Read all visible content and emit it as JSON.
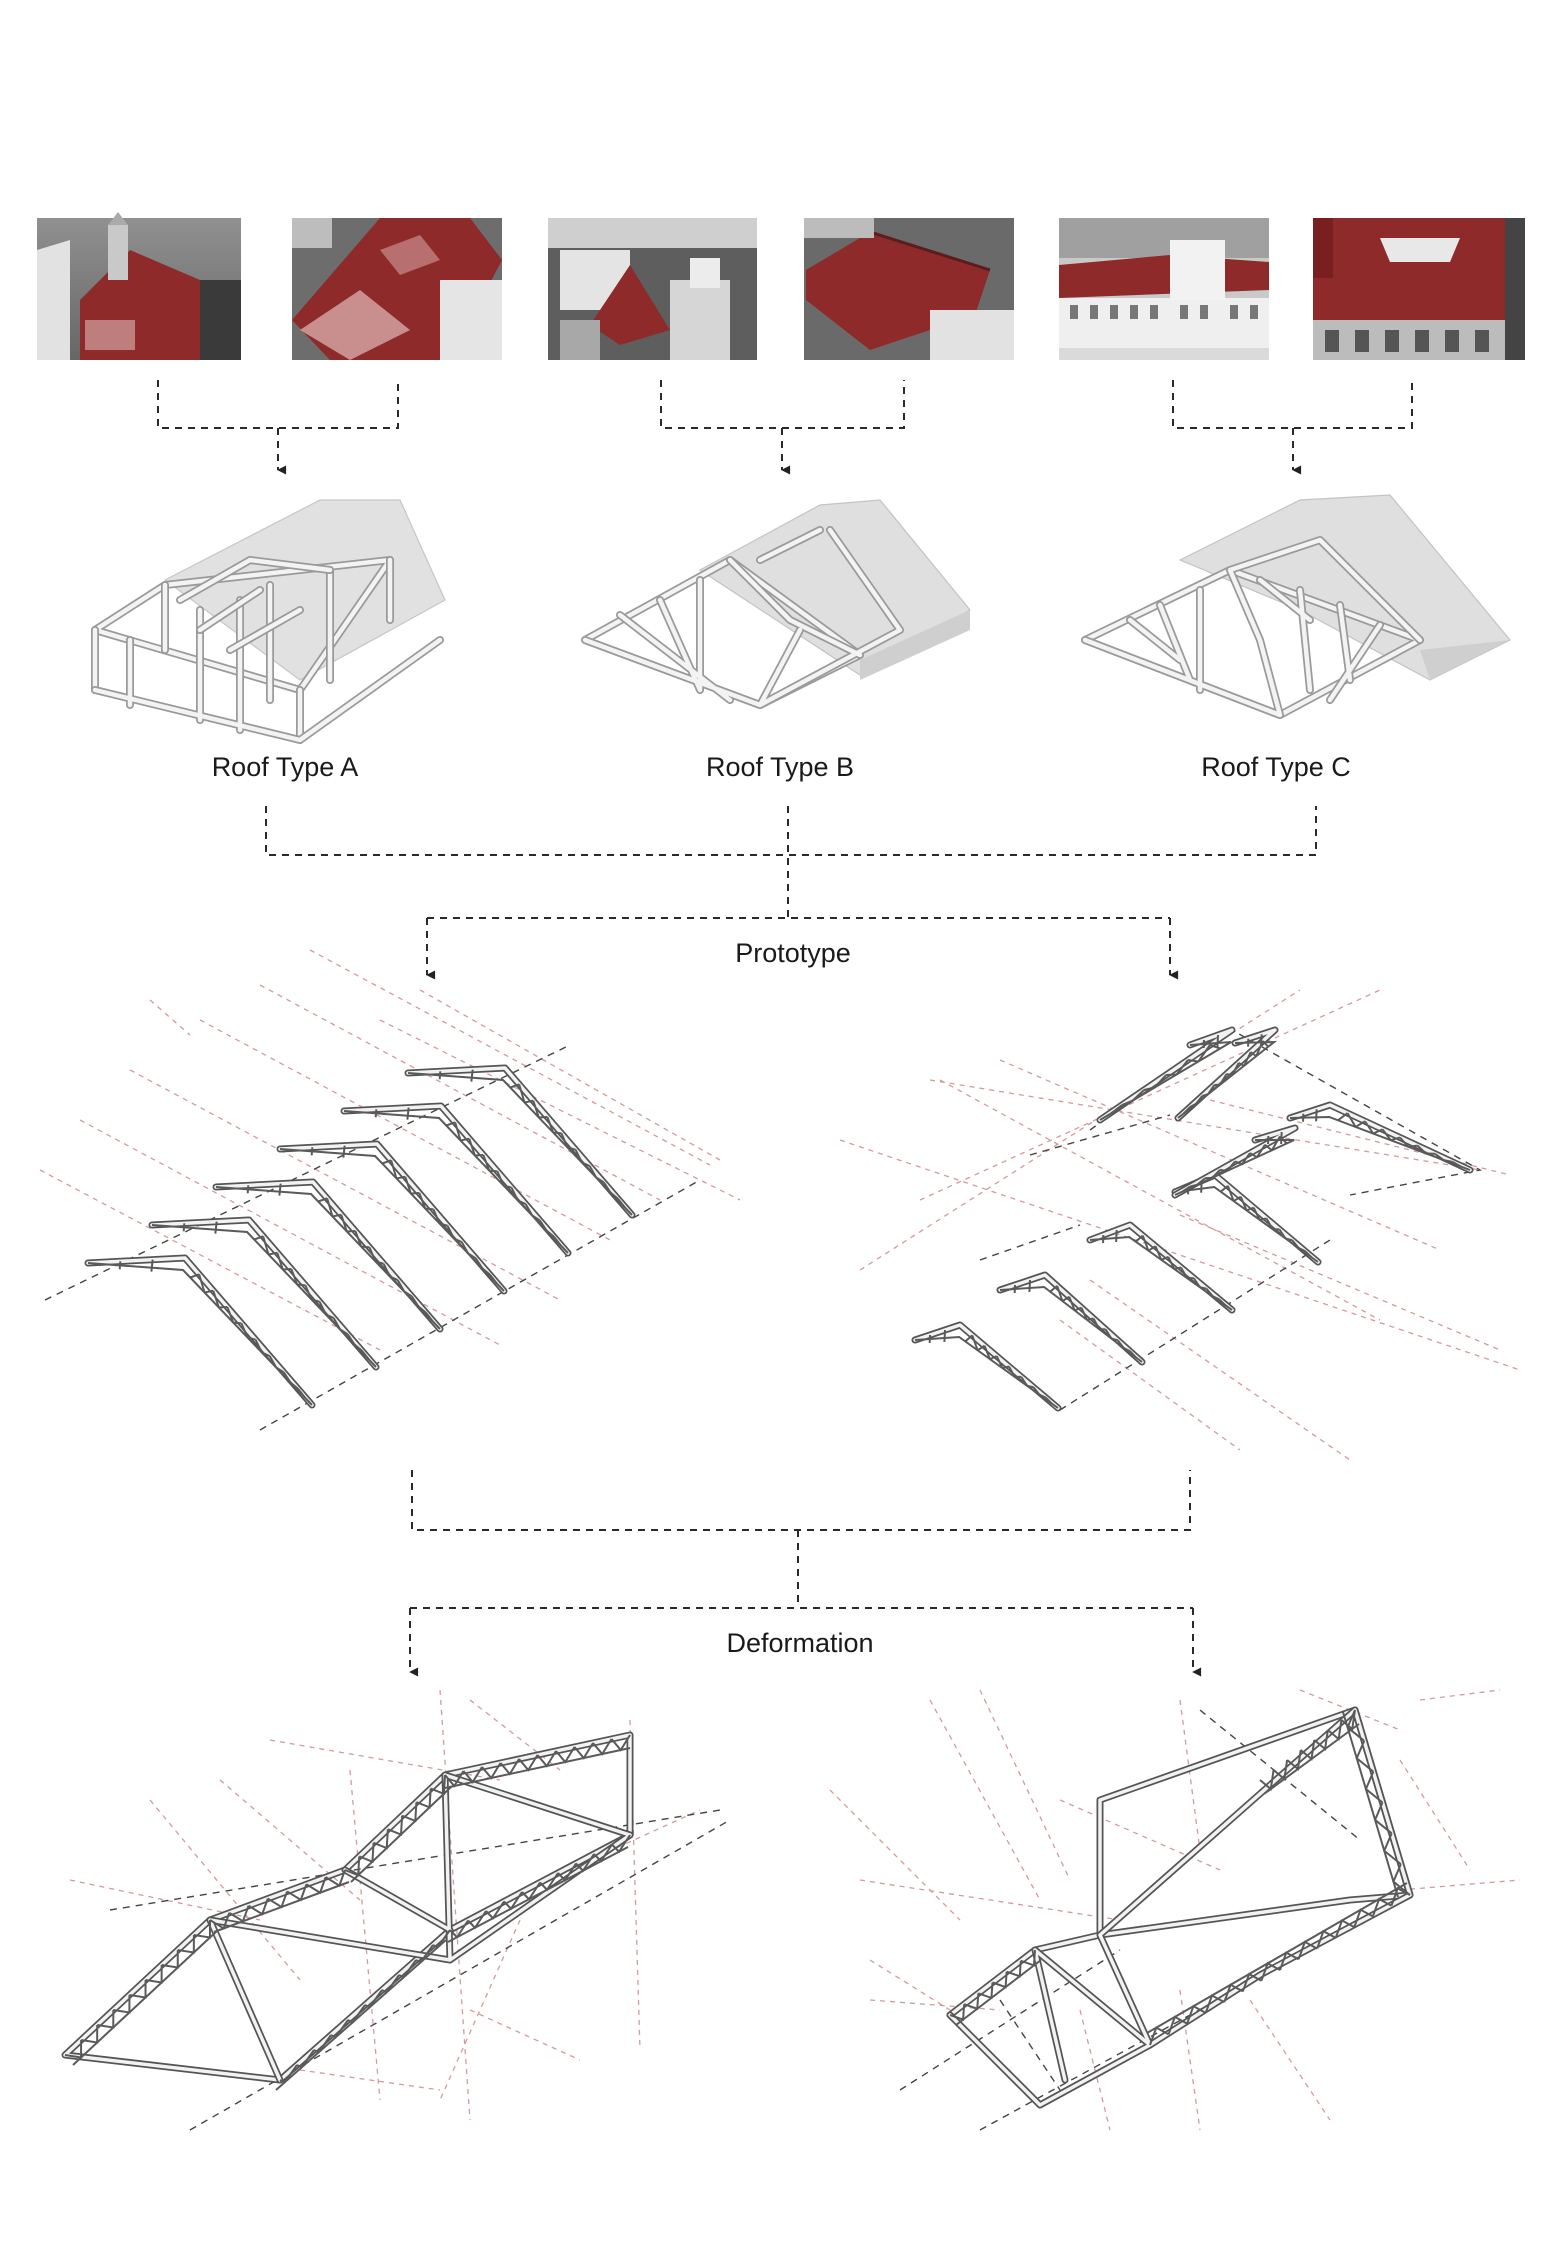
{
  "roof_types": [
    {
      "label": "Roof Type A"
    },
    {
      "label": "Roof Type B"
    },
    {
      "label": "Roof Type C"
    }
  ],
  "stages": {
    "prototype": "Prototype",
    "deformation": "Deformation"
  },
  "photos": [
    {
      "name": "photo-a1",
      "highlight": "#8e2a2a"
    },
    {
      "name": "photo-a2",
      "highlight": "#8e2a2a"
    },
    {
      "name": "photo-b1",
      "highlight": "#8e2a2a"
    },
    {
      "name": "photo-b2",
      "highlight": "#8e2a2a"
    },
    {
      "name": "photo-c1",
      "highlight": "#8e2a2a"
    },
    {
      "name": "photo-c2",
      "highlight": "#8e2a2a"
    }
  ],
  "colors": {
    "roof_highlight": "#8e2a2a",
    "guide_lines": "#d49a9a",
    "connector_lines": "#2a2a2a"
  }
}
